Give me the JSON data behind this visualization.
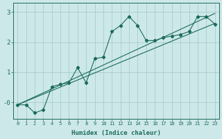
{
  "xlabel": "Humidex (Indice chaleur)",
  "background_color": "#cde8e8",
  "grid_color": "#aacccc",
  "line_color": "#1a6b5a",
  "xlim": [
    -0.5,
    23.5
  ],
  "ylim": [
    -0.55,
    3.3
  ],
  "xticks": [
    0,
    1,
    2,
    3,
    4,
    5,
    6,
    7,
    8,
    9,
    10,
    11,
    12,
    13,
    14,
    15,
    16,
    17,
    18,
    19,
    20,
    21,
    22,
    23
  ],
  "yticks": [
    0,
    1,
    2,
    3
  ],
  "ytick_labels": [
    "-0",
    "1",
    "2",
    "3"
  ],
  "straight_line1_x": [
    0,
    23
  ],
  "straight_line1_y": [
    -0.08,
    2.62
  ],
  "straight_line2_x": [
    0,
    23
  ],
  "straight_line2_y": [
    -0.08,
    2.95
  ],
  "jagged_x": [
    0,
    1,
    2,
    3,
    4,
    5,
    6,
    7,
    8,
    9,
    10,
    11,
    12,
    13,
    14,
    15,
    16,
    17,
    18,
    19,
    20,
    21,
    22,
    23
  ],
  "jagged_y": [
    -0.08,
    -0.08,
    -0.35,
    -0.25,
    0.52,
    0.6,
    0.65,
    1.15,
    0.65,
    1.45,
    1.5,
    2.35,
    2.55,
    2.85,
    2.55,
    2.05,
    2.05,
    2.15,
    2.2,
    2.25,
    2.35,
    2.85,
    2.85,
    2.6
  ],
  "marker": "D",
  "markersize": 2.2,
  "linewidth": 0.8
}
